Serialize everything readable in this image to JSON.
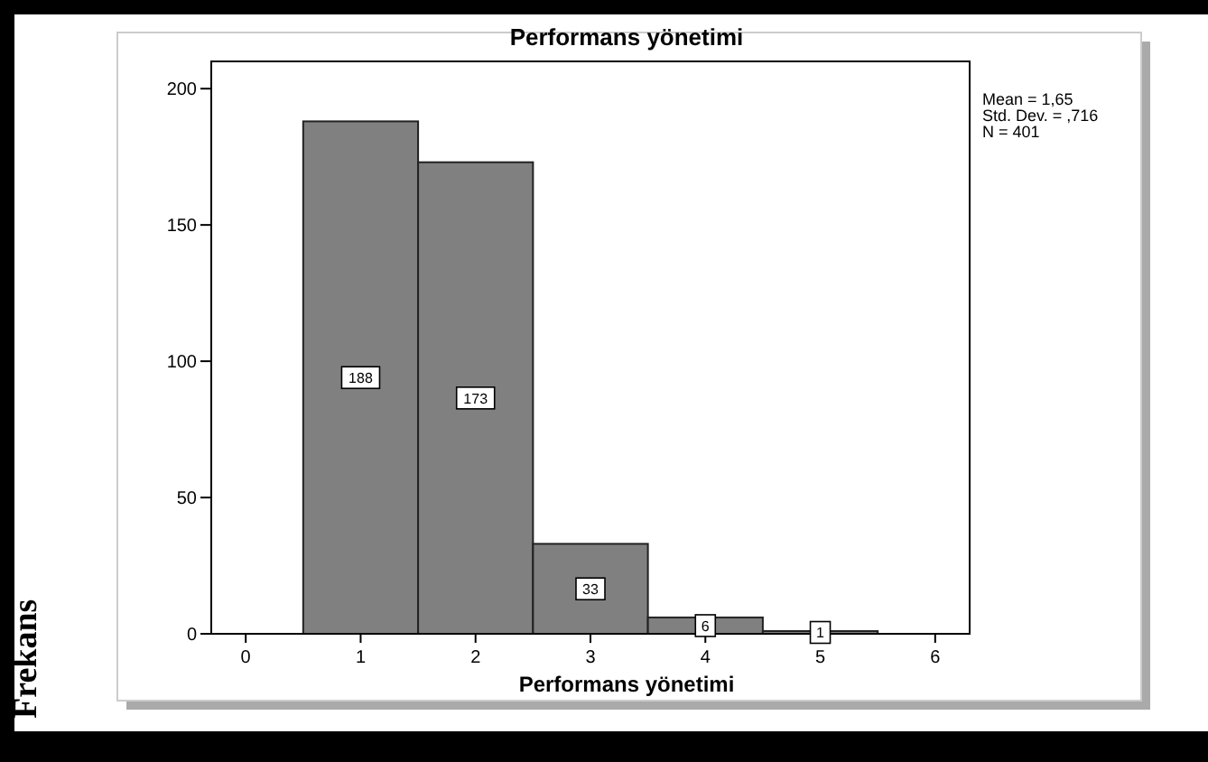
{
  "chart_data": {
    "type": "histogram",
    "title": "Performans yönetimi",
    "xlabel": "Performans yönetimi",
    "ylabel": "Frekans",
    "bins": [
      0.5,
      1.5,
      2.5,
      3.5,
      4.5,
      5.5
    ],
    "values": [
      188,
      173,
      33,
      6,
      1
    ],
    "color": "#808080",
    "xlim": [
      -0.3,
      6.3
    ],
    "xticks": [
      0,
      1,
      2,
      3,
      4,
      5,
      6
    ],
    "ylim": [
      0,
      210
    ],
    "yticks": [
      0,
      50,
      100,
      150,
      200
    ],
    "data_labels": true,
    "grid": false,
    "annotations": [
      "Mean = 1,65",
      "Std. Dev. = ,716",
      "N = 401"
    ]
  }
}
